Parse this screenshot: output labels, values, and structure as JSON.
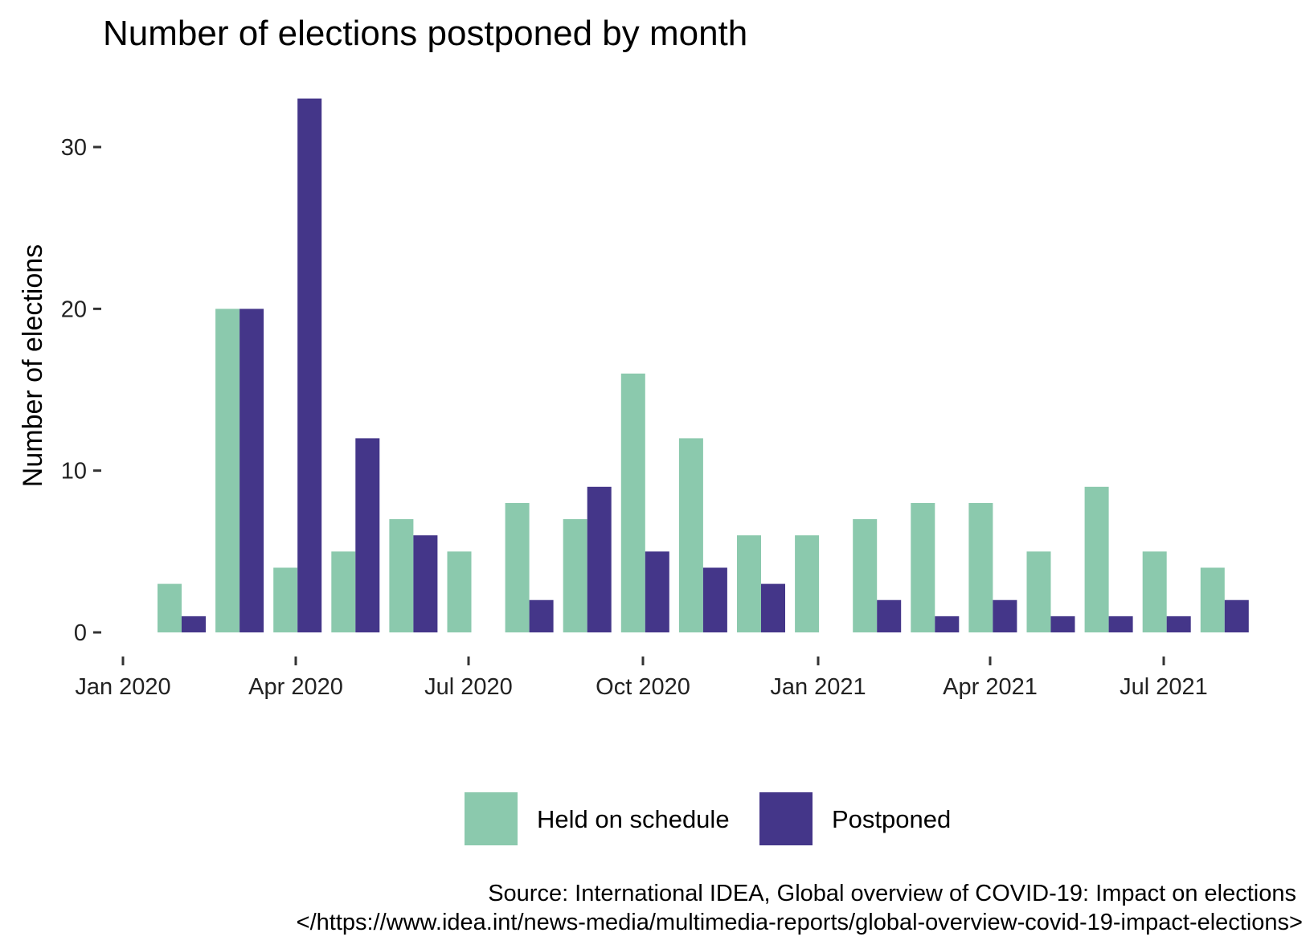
{
  "chart_data": {
    "type": "bar",
    "title": "Number of elections postponed by month",
    "xlabel": "",
    "ylabel": "Number of elections",
    "months": [
      "Feb 2020",
      "Mar 2020",
      "Apr 2020",
      "May 2020",
      "Jun 2020",
      "Jul 2020",
      "Aug 2020",
      "Sep 2020",
      "Oct 2020",
      "Nov 2020",
      "Dec 2020",
      "Jan 2021",
      "Feb 2021",
      "Mar 2021",
      "Apr 2021",
      "May 2021",
      "Jun 2021",
      "Jul 2021",
      "Aug 2021"
    ],
    "series": [
      {
        "name": "Held on schedule",
        "color": "#8BC9AD",
        "values": [
          3,
          20,
          4,
          5,
          7,
          5,
          8,
          7,
          16,
          12,
          6,
          6,
          7,
          8,
          8,
          5,
          9,
          5,
          4
        ]
      },
      {
        "name": "Postponed",
        "color": "#443689",
        "values": [
          1,
          20,
          33,
          12,
          6,
          0,
          2,
          9,
          5,
          4,
          3,
          0,
          2,
          1,
          2,
          1,
          1,
          1,
          2
        ]
      }
    ],
    "x_ticks": [
      "Jan 2020",
      "Apr 2020",
      "Jul 2020",
      "Oct 2020",
      "Jan 2021",
      "Apr 2021",
      "Jul 2021"
    ],
    "y_ticks": [
      "0",
      "10",
      "20",
      "30"
    ],
    "y_tick_values": [
      0,
      10,
      20,
      30
    ],
    "ylim": [
      0,
      34
    ],
    "grid": false,
    "legend_position": "bottom"
  },
  "caption": {
    "line1": "Source: International IDEA, Global overview of COVID-19: Impact on elections",
    "line2": "</https://www.idea.int/news-media/multimedia-reports/global-overview-covid-19-impact-elections>"
  }
}
